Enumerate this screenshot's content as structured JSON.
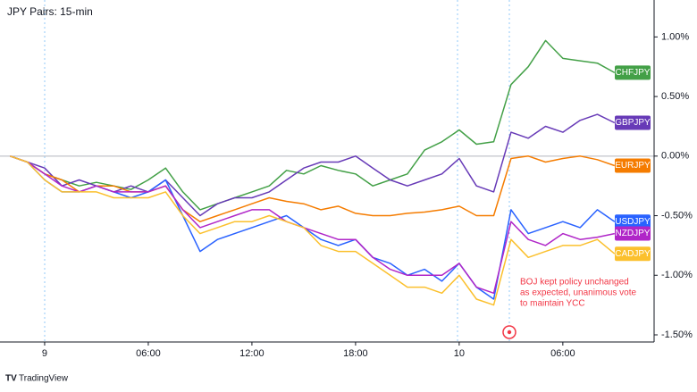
{
  "chart_data": {
    "type": "line",
    "title": "JPY Pairs: 15-min",
    "categories": [
      null,
      null,
      "9",
      null,
      null,
      null,
      null,
      null,
      "06:00",
      null,
      null,
      null,
      null,
      null,
      "12:00",
      null,
      null,
      null,
      null,
      null,
      "18:00",
      null,
      null,
      null,
      null,
      null,
      "10",
      null,
      null,
      null,
      null,
      null,
      "06:00",
      null,
      null,
      null
    ],
    "ylim": [
      -1.56,
      1.31
    ],
    "yticks": [
      {
        "value": 1,
        "label": "1.00%"
      },
      {
        "value": 0.5,
        "label": "0.50%"
      },
      {
        "value": 0,
        "label": "0.00%"
      },
      {
        "value": -0.5,
        "label": "-0.50%"
      },
      {
        "value": -1,
        "label": "-1.00%"
      },
      {
        "value": -1.5,
        "label": "-1.50%"
      }
    ],
    "grid": false,
    "legend": "right",
    "series": [
      {
        "name": "CHFJPY",
        "color": "#43a047",
        "values": [
          0,
          -0.05,
          -0.15,
          -0.2,
          -0.25,
          -0.22,
          -0.25,
          -0.28,
          -0.2,
          -0.1,
          -0.3,
          -0.45,
          -0.4,
          -0.35,
          -0.3,
          -0.25,
          -0.12,
          -0.15,
          -0.08,
          -0.12,
          -0.15,
          -0.25,
          -0.2,
          -0.15,
          0.05,
          0.12,
          0.22,
          0.1,
          0.12,
          0.6,
          0.75,
          0.97,
          0.82,
          0.8,
          0.78,
          0.7
        ]
      },
      {
        "name": "GBPJPY",
        "color": "#673ab7",
        "values": [
          0,
          -0.05,
          -0.1,
          -0.25,
          -0.2,
          -0.25,
          -0.3,
          -0.25,
          -0.3,
          -0.2,
          -0.35,
          -0.5,
          -0.4,
          -0.35,
          -0.35,
          -0.3,
          -0.2,
          -0.1,
          -0.05,
          -0.05,
          0,
          -0.1,
          -0.2,
          -0.25,
          -0.2,
          -0.15,
          -0.02,
          -0.25,
          -0.3,
          0.2,
          0.15,
          0.25,
          0.2,
          0.3,
          0.35,
          0.28
        ]
      },
      {
        "name": "EURJPY",
        "color": "#f57c00",
        "values": [
          0,
          -0.05,
          -0.15,
          -0.2,
          -0.3,
          -0.25,
          -0.25,
          -0.3,
          -0.3,
          -0.25,
          -0.45,
          -0.55,
          -0.5,
          -0.45,
          -0.4,
          -0.35,
          -0.38,
          -0.4,
          -0.45,
          -0.42,
          -0.48,
          -0.5,
          -0.5,
          -0.48,
          -0.47,
          -0.45,
          -0.42,
          -0.5,
          -0.5,
          -0.02,
          0,
          -0.05,
          -0.02,
          0,
          -0.03,
          -0.08
        ]
      },
      {
        "name": "USDJPY",
        "color": "#2962ff",
        "values": [
          0,
          -0.05,
          -0.2,
          -0.3,
          -0.3,
          -0.25,
          -0.3,
          -0.35,
          -0.3,
          -0.2,
          -0.5,
          -0.8,
          -0.7,
          -0.65,
          -0.6,
          -0.55,
          -0.5,
          -0.6,
          -0.7,
          -0.75,
          -0.7,
          -0.85,
          -0.9,
          -1,
          -0.95,
          -1.05,
          -0.9,
          -1.1,
          -1.2,
          -0.45,
          -0.65,
          -0.6,
          -0.55,
          -0.6,
          -0.45,
          -0.55
        ]
      },
      {
        "name": "NZDJPY",
        "color": "#b026c8",
        "values": [
          0,
          -0.05,
          -0.15,
          -0.25,
          -0.3,
          -0.25,
          -0.3,
          -0.3,
          -0.3,
          -0.25,
          -0.45,
          -0.6,
          -0.55,
          -0.5,
          -0.45,
          -0.45,
          -0.55,
          -0.6,
          -0.65,
          -0.7,
          -0.7,
          -0.85,
          -0.95,
          -1,
          -1,
          -1,
          -0.9,
          -1.1,
          -1.15,
          -0.55,
          -0.7,
          -0.75,
          -0.65,
          -0.7,
          -0.68,
          -0.65
        ]
      },
      {
        "name": "CADJPY",
        "color": "#fbc02d",
        "values": [
          0,
          -0.05,
          -0.2,
          -0.3,
          -0.3,
          -0.3,
          -0.35,
          -0.35,
          -0.35,
          -0.3,
          -0.5,
          -0.65,
          -0.6,
          -0.55,
          -0.55,
          -0.5,
          -0.55,
          -0.6,
          -0.75,
          -0.8,
          -0.8,
          -0.9,
          -1,
          -1.1,
          -1.1,
          -1.15,
          -1,
          -1.2,
          -1.25,
          -0.7,
          -0.85,
          -0.8,
          -0.75,
          -0.75,
          -0.7,
          -0.82
        ]
      }
    ],
    "annotation": [
      "BOJ kept policy unchanged",
      "as expected, unanimous vote",
      "to maintain YCC"
    ],
    "footer": "TradingView"
  }
}
